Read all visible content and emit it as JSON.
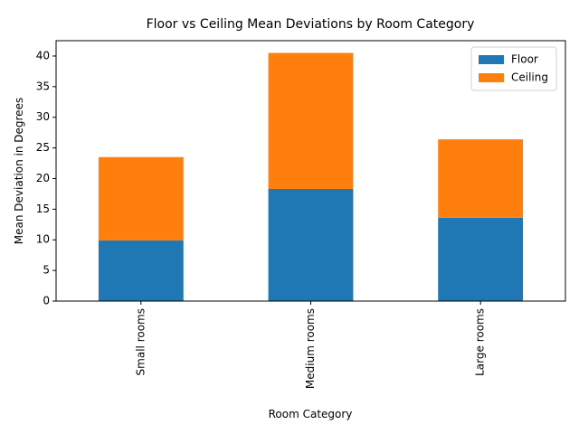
{
  "chart_data": {
    "type": "bar",
    "stacked": true,
    "title": "Floor vs Ceiling Mean Deviations by Room Category",
    "xlabel": "Room Category",
    "ylabel": "Mean Deviation in Degrees",
    "categories": [
      "Small rooms",
      "Medium rooms",
      "Large rooms"
    ],
    "series": [
      {
        "name": "Floor",
        "values": [
          9.9,
          18.3,
          13.6
        ],
        "color": "#1f77b4"
      },
      {
        "name": "Ceiling",
        "values": [
          13.6,
          22.2,
          12.8
        ],
        "color": "#ff7f0e"
      }
    ],
    "ylim": [
      0,
      42.5
    ],
    "yticks": [
      0,
      5,
      10,
      15,
      20,
      25,
      30,
      35,
      40
    ],
    "x_tick_rotation": 90,
    "grid": false,
    "legend_position": "top-right"
  }
}
